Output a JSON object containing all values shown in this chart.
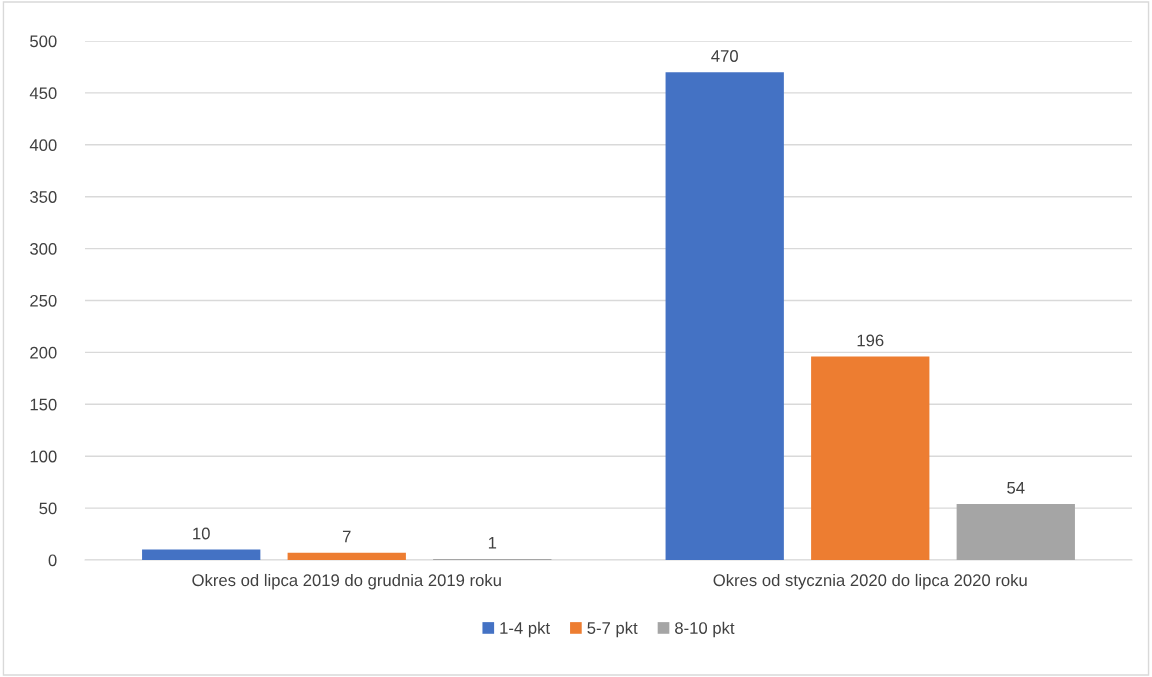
{
  "chart_data": {
    "type": "bar",
    "categories": [
      "Okres od lipca 2019 do grudnia 2019 roku",
      "Okres od stycznia 2020 do lipca 2020 roku"
    ],
    "series": [
      {
        "name": "1-4 pkt",
        "color": "#4472c4",
        "values": [
          10,
          470
        ]
      },
      {
        "name": "5-7 pkt",
        "color": "#ed7d31",
        "values": [
          7,
          196
        ]
      },
      {
        "name": "8-10 pkt",
        "color": "#a5a5a5",
        "values": [
          1,
          54
        ]
      }
    ],
    "ylim": [
      0,
      500
    ],
    "yticks": [
      0,
      50,
      100,
      150,
      200,
      250,
      300,
      350,
      400,
      450,
      500
    ],
    "grid": "y",
    "legend": "bottom",
    "data_labels": true
  }
}
